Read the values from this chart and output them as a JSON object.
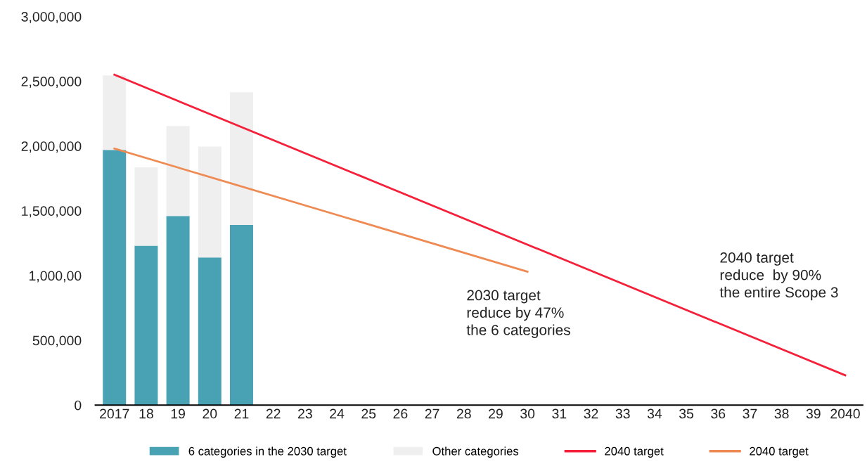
{
  "chart_data": {
    "type": "bar",
    "stacked": true,
    "categories": [
      "2017",
      "18",
      "19",
      "20",
      "21",
      "22",
      "23",
      "24",
      "25",
      "26",
      "27",
      "28",
      "29",
      "30",
      "31",
      "32",
      "33",
      "34",
      "35",
      "36",
      "37",
      "38",
      "39",
      "2040"
    ],
    "series": [
      {
        "name": "6 categories in the 2030 target",
        "color": "#48a2b3",
        "values": [
          1970000,
          1230000,
          1460000,
          1140000,
          1390000,
          null,
          null,
          null,
          null,
          null,
          null,
          null,
          null,
          null,
          null,
          null,
          null,
          null,
          null,
          null,
          null,
          null,
          null,
          null
        ]
      },
      {
        "name": "Other categories",
        "color": "#efefef",
        "values": [
          575000,
          605000,
          695000,
          855000,
          1025000,
          null,
          null,
          null,
          null,
          null,
          null,
          null,
          null,
          null,
          null,
          null,
          null,
          null,
          null,
          null,
          null,
          null,
          null,
          null
        ]
      },
      {
        "name": "2040 target",
        "type": "line",
        "color": "#f5203a",
        "values": [
          2550000,
          null,
          null,
          null,
          null,
          null,
          null,
          null,
          null,
          null,
          null,
          null,
          null,
          null,
          null,
          null,
          null,
          null,
          null,
          null,
          null,
          null,
          null,
          230000
        ]
      },
      {
        "name": "2040 target",
        "type": "line",
        "color": "#ee8a52",
        "values": [
          1980000,
          null,
          null,
          null,
          null,
          null,
          null,
          null,
          null,
          null,
          null,
          null,
          null,
          1030000,
          null,
          null,
          null,
          null,
          null,
          null,
          null,
          null,
          null,
          null
        ]
      }
    ],
    "ylim": [
      0,
      3000000
    ],
    "yticks": [
      0,
      {
        "value": 500000,
        "label": "500,000"
      },
      {
        "value": 1000000,
        "label": "1,000,00"
      },
      {
        "value": 1500000,
        "label": "1,500,000"
      },
      {
        "value": 2000000,
        "label": "2,000,000"
      },
      {
        "value": 2500000,
        "label": "2,500,000"
      },
      {
        "value": 3000000,
        "label": "3,000,000"
      }
    ],
    "grid": false,
    "legend": "bottom",
    "annotations": [
      "2030 target\nreduce by 47%\nthe 6 categories",
      "2040 target\nreduce  by 90%\nthe entire Scope 3"
    ]
  }
}
